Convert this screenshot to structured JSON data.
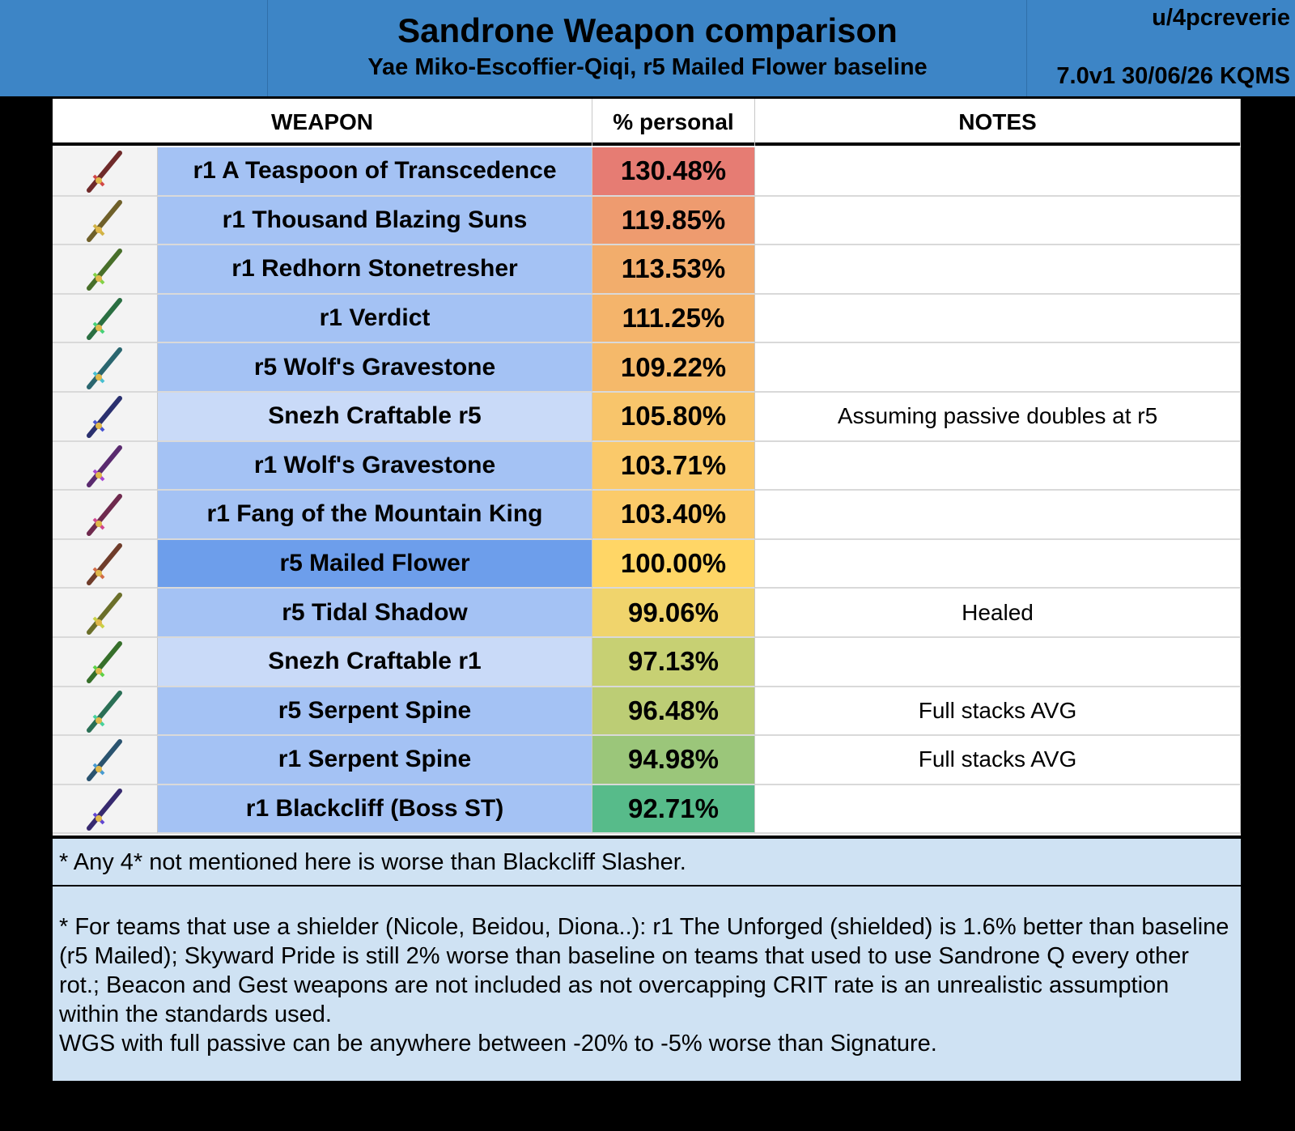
{
  "header": {
    "title": "Sandrone Weapon comparison",
    "subtitle": "Yae Miko-Escoffier-Qiqi, r5 Mailed Flower baseline",
    "author": "u/4pcreverie",
    "version": "7.0v1 30/06/26 KQMS"
  },
  "table": {
    "columns": [
      "WEAPON",
      "% personal",
      "NOTES"
    ],
    "rows": [
      {
        "weapon": "r1 A Teaspoon of Transcedence",
        "personal": "130.48%",
        "weapon_color": "#a4c2f4",
        "personal_color": "#e67c73"
      },
      {
        "weapon": "r1 Thousand Blazing Suns",
        "personal": "119.85%",
        "weapon_color": "#a4c2f4",
        "personal_color": "#ee9b6f"
      },
      {
        "weapon": "r1 Redhorn Stonetresher",
        "personal": "113.53%",
        "weapon_color": "#a4c2f4",
        "personal_color": "#f2ad6c"
      },
      {
        "weapon": "r1 Verdict",
        "personal": "111.25%",
        "weapon_color": "#a4c2f4",
        "personal_color": "#f4b46b"
      },
      {
        "weapon": "r5 Wolf's Gravestone",
        "personal": "109.22%",
        "weapon_color": "#a4c2f4",
        "personal_color": "#f5b96a"
      },
      {
        "weapon": "Snezh Craftable r5",
        "personal": "105.80%",
        "notes": "Assuming passive doubles at r5",
        "weapon_color": "#c9daf8",
        "personal_color": "#f8c56b"
      },
      {
        "weapon": "r1 Wolf's Gravestone",
        "personal": "103.71%",
        "weapon_color": "#a4c2f4",
        "personal_color": "#fac96a"
      },
      {
        "weapon": "r1 Fang of the Mountain King",
        "personal": "103.40%",
        "weapon_color": "#a4c2f4",
        "personal_color": "#fbcb6a"
      },
      {
        "weapon": "r5 Mailed Flower",
        "personal": "100.00%",
        "weapon_color": "#6d9eeb",
        "personal_color": "#ffd666"
      },
      {
        "weapon": "r5 Tidal Shadow",
        "personal": "99.06%",
        "notes": "Healed",
        "weapon_color": "#a4c2f4",
        "personal_color": "#f0d46c"
      },
      {
        "weapon": "Snezh Craftable r1",
        "personal": "97.13%",
        "weapon_color": "#c9daf8",
        "personal_color": "#c7d073"
      },
      {
        "weapon": "r5 Serpent Spine",
        "personal": "96.48%",
        "notes": "Full stacks AVG",
        "weapon_color": "#a4c2f4",
        "personal_color": "#bccd75"
      },
      {
        "weapon": "r1 Serpent Spine",
        "personal": "94.98%",
        "notes": "Full stacks AVG",
        "weapon_color": "#a4c2f4",
        "personal_color": "#9bc67a"
      },
      {
        "weapon": "r1 Blackcliff (Boss ST)",
        "personal": "92.71%",
        "weapon_color": "#a4c2f4",
        "personal_color": "#57bb8a"
      }
    ]
  },
  "footnotes": [
    "* Any 4* not mentioned here is worse than Blackcliff Slasher.",
    "* For teams that use a shielder (Nicole, Beidou, Diona..): r1 The Unforged (shielded) is 1.6% better than baseline (r5 Mailed); Skyward Pride is still 2% worse than baseline on teams that used to use Sandrone Q every other rot.; Beacon and Gest weapons are not included as not overcapping CRIT rate is an unrealistic assumption within the standards used.",
    "WGS with full passive can be anywhere between -20% to -5% worse than Signature."
  ]
}
